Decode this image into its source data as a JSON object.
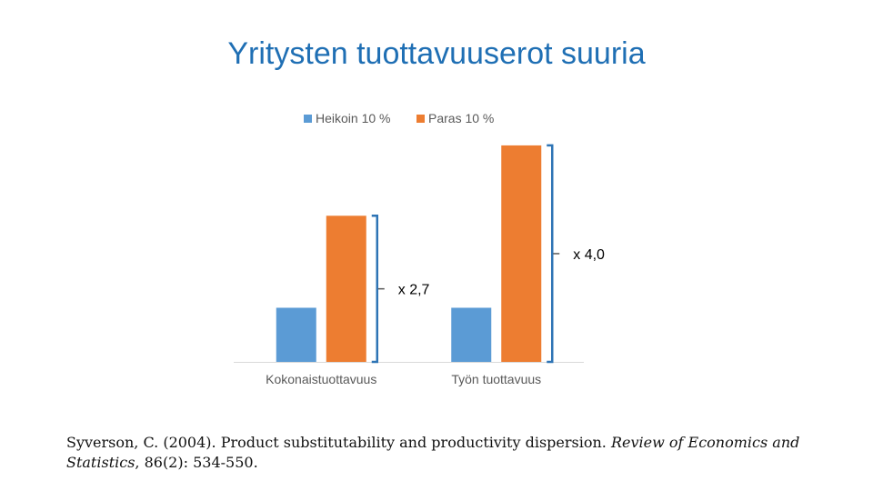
{
  "slide_title": "Yritysten tuottavuuserot suuria",
  "chart_data": {
    "type": "bar",
    "categories": [
      "Kokonaistuottavuus",
      "Työn tuottavuus"
    ],
    "series": [
      {
        "name": "Heikoin 10 %",
        "values": [
          1.0,
          1.0
        ],
        "color": "#5b9bd5"
      },
      {
        "name": "Paras 10 %",
        "values": [
          2.7,
          4.0
        ],
        "color": "#ed7d31"
      }
    ],
    "ylim": [
      0,
      4.2
    ],
    "grid": false,
    "legend": "top",
    "annotations": [
      "x 2,7",
      "x 4,0"
    ],
    "bracket_color": "#2e74b5"
  },
  "citation": {
    "text_1": "Syverson, C. (2004). Product substitutability and productivity dispersion. ",
    "journal": "Review of Economics and Statistics",
    "text_2": ", 86(2): 534-550."
  }
}
